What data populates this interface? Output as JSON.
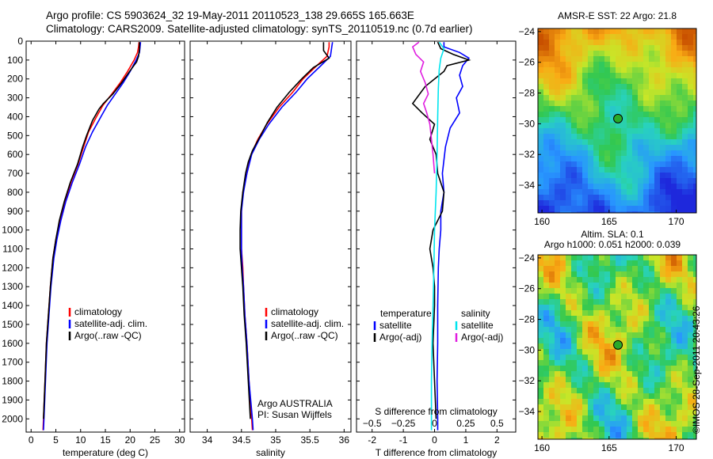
{
  "header": {
    "title_line1": "Argo profile: CS 5903624_32 19-May-2011 20110523_138 29.665S 165.663E",
    "title_line2": "Climatology: CARS2009. Satellite-adjusted climatology: synTS_20110519.nc (0.7d earlier)"
  },
  "footer": {
    "stamp": "©IMOS 28-Sep-2011 20:43:26"
  },
  "colors": {
    "climatology": "#ff0000",
    "satellite": "#0000ff",
    "argo": "#000000",
    "sal_satellite": "#00e5ee",
    "sal_argo": "#e01ee0"
  },
  "chart_data": [
    {
      "type": "line",
      "panel": "temperature",
      "xlabel": "temperature (deg C)",
      "xlim": [
        -1,
        31
      ],
      "xticks": [
        0,
        5,
        10,
        15,
        20,
        25,
        30
      ],
      "ylim": [
        0,
        2070
      ],
      "yticks": [
        0,
        100,
        200,
        300,
        400,
        500,
        600,
        700,
        800,
        900,
        1000,
        1100,
        1200,
        1300,
        1400,
        1500,
        1600,
        1700,
        1800,
        1900,
        2000
      ],
      "yreversed": true,
      "legend": [
        "climatology",
        "satellite-adj. clim.",
        "Argo(..raw -QC)"
      ],
      "series": [
        {
          "name": "climatology",
          "color": "#ff0000",
          "points": [
            [
              21.8,
              5
            ],
            [
              21.7,
              30
            ],
            [
              21.5,
              60
            ],
            [
              20.8,
              100
            ],
            [
              19.5,
              160
            ],
            [
              18,
              220
            ],
            [
              16.3,
              280
            ],
            [
              14.5,
              340
            ],
            [
              13.2,
              400
            ],
            [
              11.6,
              480
            ],
            [
              10.6,
              560
            ],
            [
              9.5,
              650
            ],
            [
              8,
              750
            ],
            [
              6.8,
              850
            ],
            [
              5.8,
              950
            ],
            [
              5,
              1050
            ],
            [
              4.4,
              1150
            ],
            [
              3.9,
              1300
            ],
            [
              3.5,
              1450
            ],
            [
              3.1,
              1600
            ],
            [
              2.8,
              1800
            ],
            [
              2.5,
              2000
            ],
            [
              2.4,
              2060
            ]
          ]
        },
        {
          "name": "satellite-adj. clim.",
          "color": "#0000ff",
          "points": [
            [
              22.1,
              5
            ],
            [
              22,
              30
            ],
            [
              21.9,
              60
            ],
            [
              21.2,
              100
            ],
            [
              20,
              160
            ],
            [
              18.6,
              220
            ],
            [
              17,
              280
            ],
            [
              15.4,
              340
            ],
            [
              14.1,
              400
            ],
            [
              12.4,
              480
            ],
            [
              11,
              560
            ],
            [
              9.8,
              650
            ],
            [
              8.3,
              750
            ],
            [
              7,
              850
            ],
            [
              6,
              950
            ],
            [
              5.2,
              1050
            ],
            [
              4.6,
              1150
            ],
            [
              4,
              1300
            ],
            [
              3.6,
              1450
            ],
            [
              3.2,
              1600
            ],
            [
              2.9,
              1800
            ],
            [
              2.6,
              2000
            ],
            [
              2.5,
              2060
            ]
          ]
        },
        {
          "name": "Argo(..raw -QC)",
          "color": "#000000",
          "points": [
            [
              21.9,
              5
            ],
            [
              21.9,
              40
            ],
            [
              21.7,
              80
            ],
            [
              21.3,
              110
            ],
            [
              19.9,
              160
            ],
            [
              18.3,
              220
            ],
            [
              16.5,
              280
            ],
            [
              14.6,
              330
            ],
            [
              13.7,
              360
            ],
            [
              12.4,
              420
            ],
            [
              11.2,
              500
            ],
            [
              10.4,
              560
            ],
            [
              9.4,
              650
            ],
            [
              7.9,
              750
            ],
            [
              6.7,
              850
            ],
            [
              5.7,
              950
            ],
            [
              5,
              1050
            ],
            [
              4.4,
              1150
            ],
            [
              3.9,
              1300
            ],
            [
              3.5,
              1450
            ],
            [
              3.1,
              1600
            ],
            [
              2.8,
              1800
            ],
            [
              2.5,
              2000
            ]
          ]
        }
      ]
    },
    {
      "type": "line",
      "panel": "salinity",
      "xlabel": "salinity",
      "xlim": [
        33.75,
        36.1
      ],
      "xticks": [
        34,
        34.5,
        35,
        35.5,
        36
      ],
      "ylim": [
        0,
        2070
      ],
      "yreversed": true,
      "legend": [
        "climatology",
        "satellite-adj. clim.",
        "Argo(..raw -QC)"
      ],
      "annotation": [
        "Argo AUSTRALIA",
        "PI: Susan Wijffels"
      ],
      "series": [
        {
          "name": "climatology",
          "color": "#ff0000",
          "points": [
            [
              35.78,
              5
            ],
            [
              35.78,
              30
            ],
            [
              35.75,
              80
            ],
            [
              35.6,
              130
            ],
            [
              35.4,
              200
            ],
            [
              35.25,
              270
            ],
            [
              35.05,
              350
            ],
            [
              34.87,
              440
            ],
            [
              34.74,
              520
            ],
            [
              34.64,
              600
            ],
            [
              34.58,
              700
            ],
            [
              34.52,
              800
            ],
            [
              34.5,
              900
            ],
            [
              34.5,
              1000
            ],
            [
              34.5,
              1100
            ],
            [
              34.52,
              1200
            ],
            [
              34.53,
              1300
            ],
            [
              34.55,
              1450
            ],
            [
              34.58,
              1600
            ],
            [
              34.61,
              1800
            ],
            [
              34.65,
              2000
            ],
            [
              34.66,
              2060
            ]
          ]
        },
        {
          "name": "satellite-adj. clim.",
          "color": "#0000ff",
          "points": [
            [
              35.83,
              5
            ],
            [
              35.82,
              30
            ],
            [
              35.8,
              80
            ],
            [
              35.66,
              130
            ],
            [
              35.46,
              200
            ],
            [
              35.3,
              270
            ],
            [
              35.09,
              350
            ],
            [
              34.9,
              440
            ],
            [
              34.76,
              520
            ],
            [
              34.65,
              600
            ],
            [
              34.58,
              700
            ],
            [
              34.53,
              800
            ],
            [
              34.5,
              900
            ],
            [
              34.5,
              1000
            ],
            [
              34.5,
              1100
            ],
            [
              34.51,
              1200
            ],
            [
              34.53,
              1300
            ],
            [
              34.55,
              1450
            ],
            [
              34.58,
              1600
            ],
            [
              34.61,
              1800
            ],
            [
              34.66,
              2000
            ],
            [
              34.67,
              2060
            ]
          ]
        },
        {
          "name": "Argo(..raw -QC)",
          "color": "#000000",
          "points": [
            [
              35.7,
              5
            ],
            [
              35.7,
              50
            ],
            [
              35.78,
              90
            ],
            [
              35.55,
              140
            ],
            [
              35.38,
              200
            ],
            [
              35.2,
              270
            ],
            [
              35.02,
              350
            ],
            [
              34.88,
              430
            ],
            [
              34.78,
              500
            ],
            [
              34.66,
              580
            ],
            [
              34.6,
              640
            ],
            [
              34.56,
              700
            ],
            [
              34.52,
              800
            ],
            [
              34.49,
              900
            ],
            [
              34.48,
              1000
            ],
            [
              34.48,
              1100
            ],
            [
              34.5,
              1200
            ],
            [
              34.52,
              1300
            ],
            [
              34.54,
              1450
            ],
            [
              34.57,
              1600
            ],
            [
              34.6,
              1800
            ],
            [
              34.63,
              2000
            ]
          ]
        }
      ]
    },
    {
      "type": "line",
      "panel": "difference",
      "xlabel": "T difference from climatology",
      "xlabel_top": "S difference from climatology",
      "xlim": [
        -2.5,
        2.6
      ],
      "xticks": [
        -2,
        -1,
        0,
        1,
        2
      ],
      "xticks_top": [
        {
          "label": "−0.5",
          "at": -2
        },
        {
          "label": "−0.25",
          "at": -1
        },
        {
          "label": "0",
          "at": 0
        },
        {
          "label": "0.25",
          "at": 1
        },
        {
          "label": "0.5",
          "at": 2
        }
      ],
      "ylim": [
        0,
        2070
      ],
      "yreversed": true,
      "legend_left": {
        "heading": "temperature",
        "items": [
          "satellite",
          "Argo(-adj)"
        ]
      },
      "legend_right": {
        "heading": "salinity",
        "items": [
          "satellite",
          "Argo(-adj)"
        ]
      },
      "series": [
        {
          "name": "temperature satellite",
          "color": "#0000ff",
          "points": [
            [
              0.3,
              5
            ],
            [
              0.3,
              30
            ],
            [
              0.8,
              60
            ],
            [
              1.1,
              90
            ],
            [
              0.9,
              130
            ],
            [
              0.8,
              180
            ],
            [
              0.9,
              240
            ],
            [
              0.7,
              300
            ],
            [
              0.8,
              380
            ],
            [
              0.5,
              460
            ],
            [
              0.35,
              560
            ],
            [
              0.25,
              700
            ],
            [
              0.3,
              800
            ],
            [
              0.2,
              900
            ],
            [
              0.2,
              1000
            ],
            [
              0.15,
              1100
            ],
            [
              0.12,
              1200
            ],
            [
              0.1,
              1400
            ],
            [
              0.1,
              1600
            ],
            [
              0.08,
              1800
            ],
            [
              0.1,
              2000
            ],
            [
              0.1,
              2060
            ]
          ]
        },
        {
          "name": "temperature Argo(-adj)",
          "color": "#000000",
          "points": [
            [
              0.1,
              5
            ],
            [
              0.2,
              40
            ],
            [
              0.6,
              70
            ],
            [
              1.1,
              100
            ],
            [
              0.4,
              130
            ],
            [
              0.3,
              160
            ],
            [
              -0.3,
              240
            ],
            [
              -0.7,
              330
            ],
            [
              -0.4,
              380
            ],
            [
              0,
              440
            ],
            [
              -0.15,
              520
            ],
            [
              0.05,
              600
            ],
            [
              0.1,
              700
            ],
            [
              0.3,
              800
            ],
            [
              0.25,
              900
            ],
            [
              -0.05,
              1000
            ],
            [
              -0.15,
              1100
            ],
            [
              -0.05,
              1200
            ],
            [
              0,
              1300
            ],
            [
              0,
              1400
            ],
            [
              -0.05,
              1600
            ],
            [
              0,
              1800
            ],
            [
              0.05,
              2000
            ]
          ]
        },
        {
          "name": "salinity satellite",
          "color": "#00e5ee",
          "points": [
            [
              0.15,
              5
            ],
            [
              0.3,
              40
            ],
            [
              0.2,
              90
            ],
            [
              0.15,
              150
            ],
            [
              0.12,
              250
            ],
            [
              0.1,
              400
            ],
            [
              0.08,
              600
            ],
            [
              0.05,
              800
            ],
            [
              0,
              1000
            ],
            [
              -0.02,
              1200
            ],
            [
              -0.05,
              1400
            ],
            [
              -0.08,
              1600
            ],
            [
              -0.1,
              1800
            ],
            [
              -0.1,
              2000
            ],
            [
              -0.1,
              2060
            ]
          ]
        },
        {
          "name": "salinity Argo(-adj)",
          "color": "#e01ee0",
          "points": [
            [
              -0.5,
              5
            ],
            [
              -0.7,
              30
            ],
            [
              -0.6,
              70
            ],
            [
              -0.35,
              110
            ],
            [
              -0.45,
              160
            ],
            [
              -0.3,
              220
            ],
            [
              -0.2,
              280
            ],
            [
              -0.35,
              330
            ],
            [
              -0.25,
              380
            ],
            [
              -0.15,
              440
            ],
            [
              -0.1,
              520
            ],
            [
              -0.05,
              600
            ],
            [
              0,
              700
            ]
          ]
        }
      ]
    },
    {
      "type": "heatmap",
      "panel": "sst-map",
      "title": "AMSR-E SST: 22 Argo: 21.8",
      "xticks": [
        160,
        165,
        170
      ],
      "yticks": [
        -24,
        -26,
        -28,
        -30,
        -32,
        -34
      ],
      "xlim": [
        159.7,
        171.5
      ],
      "ylim": [
        -35.8,
        -23.8
      ],
      "marker": [
        165.663,
        -29.665
      ]
    },
    {
      "type": "heatmap",
      "panel": "sla-map",
      "title_lines": [
        "Altim. SLA: 0.1",
        "Argo h1000: 0.051 h2000: 0.039"
      ],
      "xticks": [
        160,
        165,
        170
      ],
      "yticks": [
        -24,
        -26,
        -28,
        -30,
        -32,
        -34
      ],
      "xlim": [
        159.7,
        171.5
      ],
      "ylim": [
        -35.8,
        -23.8
      ],
      "marker": [
        165.663,
        -29.665
      ]
    }
  ]
}
